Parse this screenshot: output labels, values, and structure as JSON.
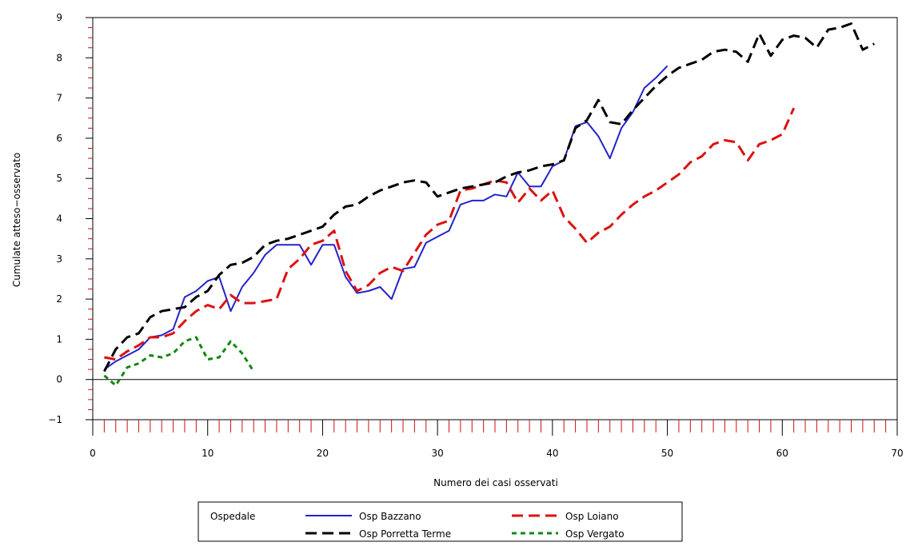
{
  "chart_data": {
    "type": "line",
    "title": "",
    "xlabel": "Numero dei casi osservati",
    "ylabel": "Cumulate atteso−osservato",
    "xlim": [
      0,
      70
    ],
    "ylim": [
      -1,
      9
    ],
    "x_ticks": [
      0,
      10,
      20,
      30,
      40,
      50,
      60,
      70
    ],
    "y_ticks": [
      -1,
      0,
      1,
      2,
      3,
      4,
      5,
      6,
      7,
      8,
      9
    ],
    "reference_line_y": 0,
    "legend": {
      "title": "Ospedale",
      "position": "bottom"
    },
    "series": [
      {
        "name": "Osp Bazzano",
        "color": "#2222cc",
        "style": "solid",
        "x": [
          1,
          2,
          3,
          4,
          5,
          6,
          7,
          8,
          9,
          10,
          11,
          12,
          13,
          14,
          15,
          16,
          17,
          18,
          19,
          20,
          21,
          22,
          23,
          24,
          25,
          26,
          27,
          28,
          29,
          30,
          31,
          32,
          33,
          34,
          35,
          36,
          37,
          38,
          39,
          40,
          41,
          42,
          43,
          44,
          45,
          46,
          47,
          48,
          49,
          50
        ],
        "y": [
          0.25,
          0.45,
          0.6,
          0.75,
          1.05,
          1.1,
          1.25,
          2.05,
          2.2,
          2.45,
          2.55,
          1.7,
          2.3,
          2.65,
          3.1,
          3.35,
          3.35,
          3.35,
          2.85,
          3.35,
          3.35,
          2.55,
          2.15,
          2.2,
          2.3,
          2.0,
          2.75,
          2.8,
          3.4,
          3.55,
          3.7,
          4.35,
          4.45,
          4.45,
          4.6,
          4.55,
          5.15,
          4.8,
          4.8,
          5.3,
          5.45,
          6.3,
          6.4,
          6.05,
          5.5,
          6.25,
          6.65,
          7.25,
          7.5,
          7.8
        ]
      },
      {
        "name": "Osp Loiano",
        "color": "#dd1111",
        "style": "dashed",
        "x": [
          1,
          2,
          3,
          4,
          5,
          6,
          7,
          8,
          9,
          10,
          11,
          12,
          13,
          14,
          15,
          16,
          17,
          18,
          19,
          20,
          21,
          22,
          23,
          24,
          25,
          26,
          27,
          28,
          29,
          30,
          31,
          32,
          33,
          34,
          35,
          36,
          37,
          38,
          39,
          40,
          41,
          42,
          43,
          44,
          45,
          46,
          47,
          48,
          49,
          50,
          51,
          52,
          53,
          54,
          55,
          56,
          57,
          58,
          59,
          60,
          61
        ],
        "y": [
          0.55,
          0.5,
          0.7,
          0.85,
          1.05,
          1.05,
          1.15,
          1.45,
          1.7,
          1.85,
          1.75,
          2.1,
          1.9,
          1.9,
          1.95,
          2.0,
          2.75,
          3.0,
          3.35,
          3.45,
          3.7,
          2.7,
          2.2,
          2.35,
          2.65,
          2.8,
          2.7,
          3.15,
          3.6,
          3.85,
          3.95,
          4.7,
          4.75,
          4.85,
          4.95,
          4.9,
          4.4,
          4.75,
          4.45,
          4.7,
          4.05,
          3.75,
          3.4,
          3.65,
          3.8,
          4.1,
          4.35,
          4.55,
          4.7,
          4.9,
          5.1,
          5.4,
          5.55,
          5.85,
          5.95,
          5.9,
          5.45,
          5.85,
          5.95,
          6.1,
          6.75
        ]
      },
      {
        "name": "Osp Porretta Terme",
        "color": "#000000",
        "style": "dashed",
        "x": [
          1,
          2,
          3,
          4,
          5,
          6,
          7,
          8,
          9,
          10,
          11,
          12,
          13,
          14,
          15,
          16,
          17,
          18,
          19,
          20,
          21,
          22,
          23,
          24,
          25,
          26,
          27,
          28,
          29,
          30,
          31,
          32,
          33,
          34,
          35,
          36,
          37,
          38,
          39,
          40,
          41,
          42,
          43,
          44,
          45,
          46,
          47,
          48,
          49,
          50,
          51,
          52,
          53,
          54,
          55,
          56,
          57,
          58,
          59,
          60,
          61,
          62,
          63,
          64,
          65,
          66,
          67,
          68
        ],
        "y": [
          0.2,
          0.75,
          1.05,
          1.15,
          1.55,
          1.7,
          1.75,
          1.8,
          2.05,
          2.2,
          2.6,
          2.85,
          2.9,
          3.05,
          3.35,
          3.45,
          3.5,
          3.6,
          3.7,
          3.8,
          4.1,
          4.3,
          4.35,
          4.55,
          4.7,
          4.8,
          4.9,
          4.95,
          4.9,
          4.55,
          4.65,
          4.75,
          4.8,
          4.85,
          4.9,
          5.05,
          5.15,
          5.2,
          5.3,
          5.35,
          5.45,
          6.25,
          6.45,
          6.95,
          6.4,
          6.35,
          6.7,
          7.0,
          7.3,
          7.55,
          7.75,
          7.85,
          7.95,
          8.15,
          8.2,
          8.15,
          7.9,
          8.6,
          8.05,
          8.45,
          8.55,
          8.5,
          8.25,
          8.7,
          8.75,
          8.85,
          8.2,
          8.35
        ]
      },
      {
        "name": "Osp Vergato",
        "color": "#118811",
        "style": "dotted",
        "x": [
          1,
          2,
          3,
          4,
          5,
          6,
          7,
          8,
          9,
          10,
          11,
          12,
          13,
          14
        ],
        "y": [
          0.1,
          -0.15,
          0.3,
          0.4,
          0.6,
          0.55,
          0.65,
          0.95,
          1.05,
          0.5,
          0.55,
          0.95,
          0.65,
          0.2
        ]
      }
    ]
  }
}
